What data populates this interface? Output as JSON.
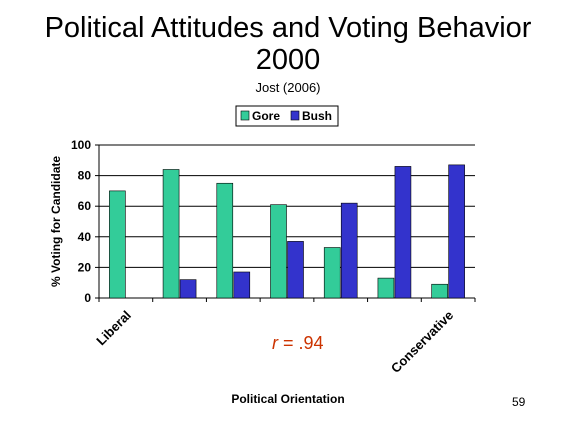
{
  "slide": {
    "title_line1": "Political Attitudes and Voting Behavior",
    "title_line2": "2000",
    "subtitle": "Jost (2006)",
    "annotation_r": "r",
    "annotation_rest": " = .94",
    "page_number": "59"
  },
  "chart_data": {
    "type": "bar",
    "categories": [
      "Liberal",
      "",
      "",
      "",
      "",
      "",
      "Conservative"
    ],
    "series": [
      {
        "name": "Gore",
        "color": "#33cc99",
        "values": [
          70,
          84,
          75,
          61,
          33,
          13,
          9
        ]
      },
      {
        "name": "Bush",
        "color": "#3333cc",
        "values": [
          0,
          12,
          17,
          37,
          62,
          86,
          87
        ]
      }
    ],
    "xlabel": "Political Orientation",
    "ylabel": "% Voting for Candidate",
    "ylim": [
      0,
      100
    ],
    "yticks": [
      0,
      20,
      40,
      60,
      80,
      100
    ],
    "grid": true,
    "legend": "top-center"
  }
}
